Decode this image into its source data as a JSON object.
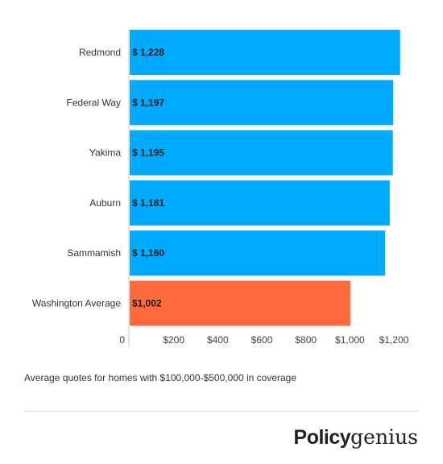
{
  "chart_data": {
    "type": "bar",
    "orientation": "horizontal",
    "categories": [
      "Redmond",
      "Federal Way",
      "Yakima",
      "Auburn",
      "Sammamish",
      "Washington Average"
    ],
    "values": [
      1228,
      1197,
      1195,
      1181,
      1160,
      1002
    ],
    "data_labels": [
      "$ 1,228",
      "$ 1,197",
      "$ 1,195",
      "$ 1,181",
      "$ 1,160",
      "$1,002"
    ],
    "colors": [
      "#00aaff",
      "#00aaff",
      "#00aaff",
      "#00aaff",
      "#00aaff",
      "#ff6a3d"
    ],
    "x_ticks": [
      0,
      200,
      400,
      600,
      800,
      1000,
      1200
    ],
    "x_tick_labels": [
      "0",
      "$200",
      "$400",
      "$600",
      "$800",
      "$1,000",
      "$1,200"
    ],
    "xlim": [
      0,
      1240
    ],
    "grid": false,
    "legend": "none"
  },
  "caption": "Average quotes for homes with $100,000-$500,000 in coverage",
  "logo": {
    "part1": "Policy",
    "part2": "genius"
  }
}
